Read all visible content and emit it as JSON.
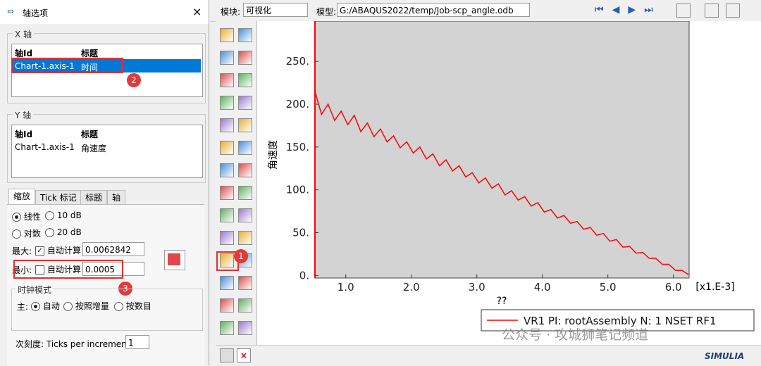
{
  "dialog": {
    "title": "轴选项",
    "x_axis": {
      "legend": "X 轴",
      "headers": [
        "轴Id",
        "标题"
      ],
      "rows": [
        [
          "Chart-1.axis-1",
          "时间"
        ]
      ]
    },
    "y_axis": {
      "legend": "Y 轴",
      "headers": [
        "轴Id",
        "标题"
      ],
      "rows": [
        [
          "Chart-1.axis-1",
          "角速度"
        ]
      ]
    },
    "tabs": [
      "缩放",
      "Tick 标记",
      "标题",
      "轴"
    ],
    "scale_options": [
      "线性",
      "10 dB",
      "对数",
      "20 dB"
    ],
    "max_label": "最大:",
    "min_label": "最小:",
    "auto_calc": "自动计算",
    "max_value": "0.0062842",
    "min_value": "0.0005",
    "clock_mode": {
      "legend": "时钟模式",
      "main_label": "主:",
      "options": [
        "自动",
        "按照增量",
        "按数目"
      ]
    },
    "minor_label": "次刻度: Ticks per increment:",
    "minor_value": "1",
    "badges": [
      "1",
      "2",
      "3"
    ]
  },
  "toolbar": {
    "module_label": "模块:",
    "module_value": "可视化",
    "model_label": "模型:",
    "model_value": "G:/ABAQUS2022/temp/Job-scp_angle.odb"
  },
  "chart_data": {
    "type": "line",
    "ylabel": "角速度",
    "xlabel": "??",
    "x_multiplier": "[x1.E-3]",
    "x": [
      0.53,
      0.63,
      0.73,
      0.83,
      0.93,
      1.03,
      1.13,
      1.23,
      1.33,
      1.43,
      1.53,
      1.63,
      1.73,
      1.83,
      1.93,
      2.03,
      2.13,
      2.23,
      2.33,
      2.43,
      2.53,
      2.63,
      2.73,
      2.83,
      2.93,
      3.03,
      3.13,
      3.23,
      3.33,
      3.43,
      3.53,
      3.63,
      3.73,
      3.83,
      3.93,
      4.03,
      4.13,
      4.23,
      4.33,
      4.43,
      4.53,
      4.63,
      4.73,
      4.83,
      4.93,
      5.03,
      5.13,
      5.23,
      5.33,
      5.43,
      5.53,
      5.63,
      5.73,
      5.83,
      5.93,
      6.03,
      6.13,
      6.23
    ],
    "series": [
      {
        "name": "VR1 PI: rootAssembly N: 1 NSET RF1",
        "color": "#ff0000",
        "values": [
          215,
          188,
          200,
          181,
          192,
          176,
          187,
          168,
          178,
          162,
          171,
          156,
          163,
          149,
          156,
          143,
          150,
          136,
          142,
          128,
          135,
          122,
          128,
          115,
          120,
          108,
          114,
          102,
          107,
          94,
          99,
          88,
          92,
          81,
          85,
          74,
          77,
          67,
          70,
          61,
          63,
          54,
          56,
          47,
          49,
          40,
          42,
          33,
          34,
          26,
          27,
          20,
          20,
          13,
          13,
          6,
          6,
          1
        ]
      }
    ],
    "xlim": [
      0.53,
      6.24
    ],
    "ylim": [
      -3,
      297
    ],
    "xticks": [
      {
        "value": 1,
        "label": "1.0"
      },
      {
        "value": 2,
        "label": "2.0"
      },
      {
        "value": 3,
        "label": "3.0"
      },
      {
        "value": 4,
        "label": "4.0"
      },
      {
        "value": 5,
        "label": "5.0"
      },
      {
        "value": 6,
        "label": "6.0"
      }
    ],
    "yticks": [
      {
        "value": 0,
        "label": "0."
      },
      {
        "value": 50,
        "label": "50."
      },
      {
        "value": 100,
        "label": "100."
      },
      {
        "value": 150,
        "label": "150."
      },
      {
        "value": 200,
        "label": "200."
      },
      {
        "value": 250,
        "label": "250."
      }
    ],
    "plot_background": "#d3d3d3"
  },
  "watermark": "公众号 · 攻城狮笔记频道",
  "logo": "SIMULIA"
}
